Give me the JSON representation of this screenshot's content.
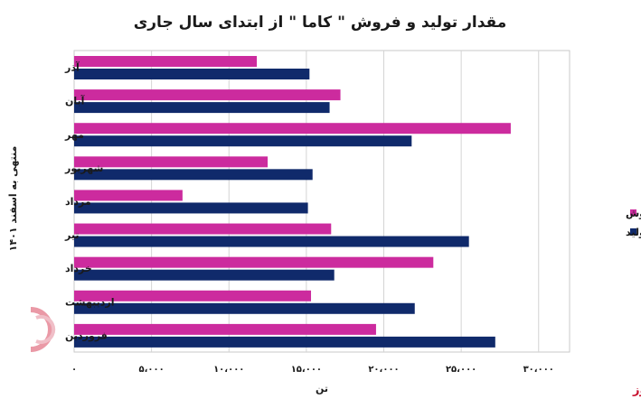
{
  "chart_data": {
    "type": "bar",
    "orientation": "horizontal",
    "title": "مقدار تولید و فروش \" کاما \" از ابتدای سال جاری",
    "xlabel": "تن",
    "ylabel": "منتهی به اسفند ۱۴۰۱",
    "categories": [
      "آذر",
      "آبان",
      "مهر",
      "شهریور",
      "مرداد",
      "تیر",
      "خرداد",
      "اردیبهشت",
      "فروردین"
    ],
    "series": [
      {
        "name": "فروش",
        "color": "#cc2b9e",
        "values": [
          11800,
          17200,
          28200,
          12500,
          7000,
          16600,
          23200,
          15300,
          19500
        ]
      },
      {
        "name": "تولید",
        "color": "#102a6b",
        "values": [
          15200,
          16500,
          21800,
          15400,
          15100,
          25500,
          16800,
          22000,
          27200
        ]
      }
    ],
    "xlim": [
      0,
      32000
    ],
    "xticks": [
      0,
      5000,
      10000,
      15000,
      20000,
      25000,
      30000
    ],
    "xtick_labels": [
      "۰",
      "۵،۰۰۰",
      "۱۰،۰۰۰",
      "۱۵،۰۰۰",
      "۲۰،۰۰۰",
      "۲۵،۰۰۰",
      "۳۰،۰۰۰"
    ],
    "grid": "vertical",
    "legend_position": "right"
  },
  "brand": {
    "name": "بورس نیوز"
  }
}
